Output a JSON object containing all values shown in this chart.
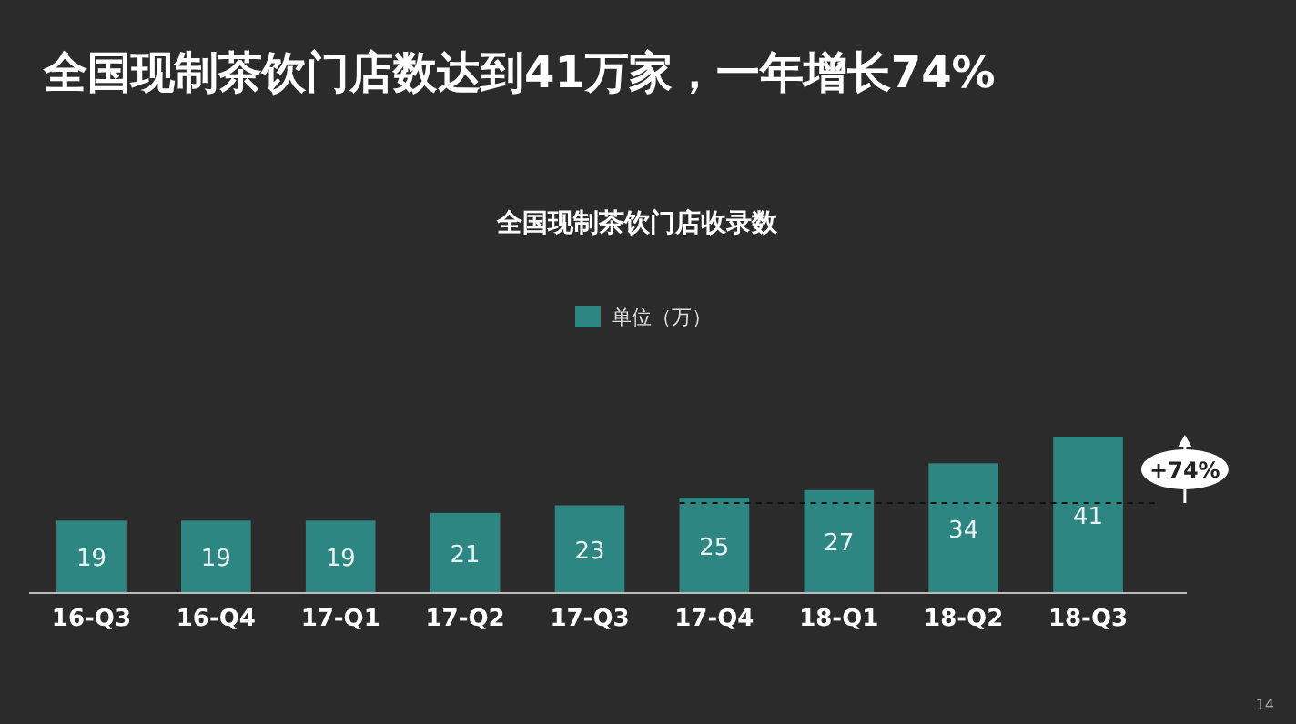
{
  "chart_data": {
    "type": "bar",
    "title": "全国现制茶饮门店数达到41万家，一年增长74%",
    "subtitle": "全国现制茶饮门店收录数",
    "categories": [
      "16-Q3",
      "16-Q4",
      "17-Q1",
      "17-Q2",
      "17-Q3",
      "17-Q4",
      "18-Q1",
      "18-Q2",
      "18-Q3"
    ],
    "series": [
      {
        "name": "单位（万）",
        "color": "#2e8683",
        "values": [
          19,
          19,
          19,
          21,
          23,
          25,
          27,
          34,
          41
        ]
      }
    ],
    "data_labels": true,
    "legend": "top",
    "grid": false,
    "ref_lines": [
      {
        "axis": "y",
        "value": 23.6,
        "line_style": "dashed",
        "color": "#111111"
      }
    ],
    "annotations": [
      "+74%",
      "14"
    ]
  }
}
